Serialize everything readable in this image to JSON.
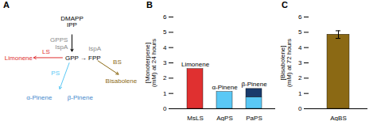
{
  "chart_data": [
    {
      "type": "diagram",
      "title": "A",
      "annotations": [
        "DMAPP\nIPP",
        "GPPS",
        "IspA",
        "IspA",
        "GPP",
        "LS",
        "BS",
        "→ FPP",
        "PS",
        "Limonene",
        "Bisabolene",
        "α-Pinene",
        "β-Pinene"
      ],
      "colors": [
        "#000000",
        "#888888",
        "#888888",
        "#888888",
        "#000000",
        "#e03030",
        "#8B6914",
        "#000000",
        "#5ac8f5",
        "#e03030",
        "#8B6914",
        "#4488cc",
        "#4488cc"
      ]
    },
    {
      "type": "bar",
      "title": "B",
      "stacked": true,
      "categories": [
        "MsLS",
        "AgPS",
        "PaPS"
      ],
      "series": [
        {
          "name": "Limonene",
          "color": "#e03030",
          "values": [
            2.6,
            0,
            0
          ]
        },
        {
          "name": "α-Pinene",
          "color": "#5ac8f5",
          "values": [
            0,
            1.1,
            0.75
          ]
        },
        {
          "name": "β-Pinene",
          "color": "#1a3a6b",
          "values": [
            0,
            0.0,
            0.55
          ]
        }
      ],
      "ylabel": "[Monoterpene]\n(mM) at 24 hours",
      "ylim": [
        0,
        6
      ],
      "yticks": [
        0,
        1,
        2,
        3,
        4,
        5,
        6
      ]
    },
    {
      "type": "bar",
      "title": "C",
      "categories": [
        "AgBS"
      ],
      "values": [
        4.85
      ],
      "errors": [
        0.25
      ],
      "color": "#8B6914",
      "ylabel": "[Bisabolene]\n(mM) at 72 hours",
      "ylim": [
        0,
        6
      ],
      "yticks": [
        0,
        1,
        2,
        3,
        4,
        5,
        6
      ]
    }
  ]
}
